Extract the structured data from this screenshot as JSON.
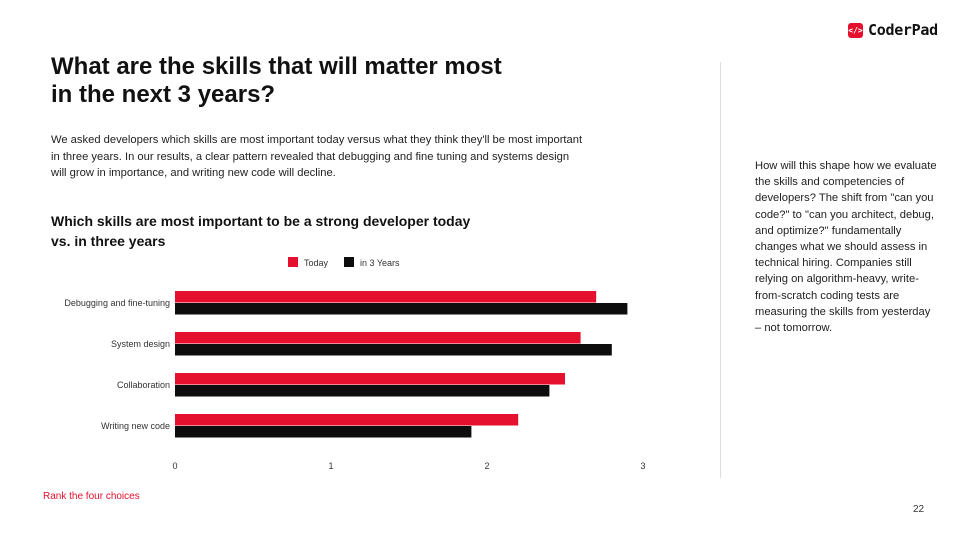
{
  "brand": {
    "name": "CoderPad",
    "mark": "</>"
  },
  "title": "What are the skills that will matter most in the next 3 years?",
  "intro": "We asked developers which skills are most important today versus what they think they'll be most important in three years. In our results, a clear pattern revealed that debugging and fine tuning and systems design will grow in importance, and writing new code will decline.",
  "side_text": "How will this shape how we evaluate the skills and competencies of developers? The shift from \"can you code?\" to \"can you architect, debug, and optimize?\" fundamentally changes what we should assess in technical hiring. Companies still relying on algorithm-heavy, write-from-scratch coding tests are measuring the skills from yesterday – not tomorrow.",
  "footnote": "Rank the four choices",
  "page_number": "22",
  "colors": {
    "today": "#e4102d",
    "in3years": "#0d0d0d",
    "accent": "#e4102d"
  },
  "chart_data": {
    "type": "bar",
    "orientation": "horizontal",
    "title": "Which skills are most important to be a strong developer today vs. in three years",
    "categories": [
      "Debugging and fine-tuning",
      "System design",
      "Collaboration",
      "Writing new code"
    ],
    "series": [
      {
        "name": "Today",
        "values": [
          2.7,
          2.6,
          2.5,
          2.2
        ]
      },
      {
        "name": "in 3 Years",
        "values": [
          2.9,
          2.8,
          2.4,
          1.9
        ]
      }
    ],
    "xlim": [
      0,
      3
    ],
    "xticks": [
      "0",
      "1",
      "2",
      "3"
    ],
    "legend_position": "top-center",
    "grid": false
  }
}
